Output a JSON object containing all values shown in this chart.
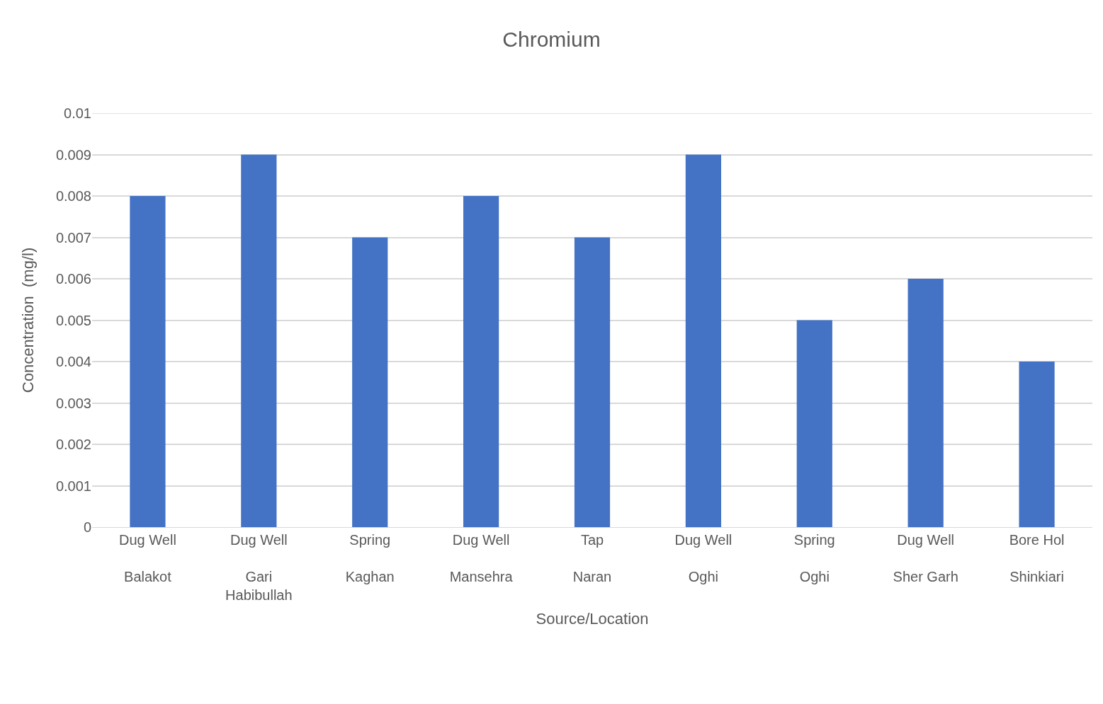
{
  "chart_data": {
    "type": "bar",
    "title": "Chromium",
    "xlabel": "Source/Location",
    "ylabel": "Concentration  (mg/l)",
    "categories": [
      "Dug Well\nBalakot",
      "Dug Well\nGari Habibullah",
      "Spring\nKaghan",
      "Dug Well\nMansehra",
      "Tap\nNaran",
      "Dug Well\nOghi",
      "Spring\nOghi",
      "Dug Well\nSher Garh",
      "Bore Hol\nShinkiari"
    ],
    "values": [
      0.008,
      0.009,
      0.007,
      0.008,
      0.007,
      0.009,
      0.005,
      0.006,
      0.004
    ],
    "color": "#4472c4",
    "ylim": [
      0,
      0.01
    ],
    "yticks": [
      0,
      0.001,
      0.002,
      0.003,
      0.004,
      0.005,
      0.006,
      0.007,
      0.008,
      0.009,
      0.01
    ],
    "grid": "y"
  }
}
